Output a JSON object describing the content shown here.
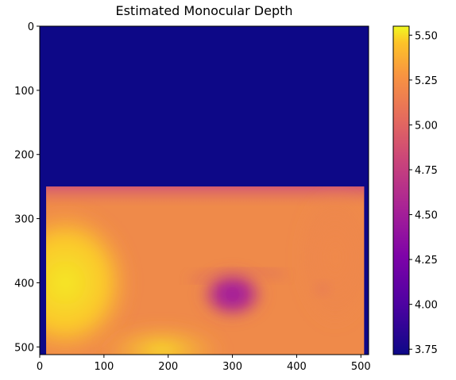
{
  "chart_data": {
    "type": "heatmap",
    "title": "Estimated Monocular Depth",
    "xlabel": "",
    "ylabel": "",
    "x_ticks": [
      0,
      100,
      200,
      300,
      400,
      500
    ],
    "y_ticks": [
      0,
      100,
      200,
      300,
      400,
      500
    ],
    "x_range": [
      0,
      512
    ],
    "y_range": [
      0,
      512
    ],
    "colormap": "plasma",
    "colorbar": {
      "range": [
        3.72,
        5.55
      ],
      "ticks": [
        3.75,
        4.0,
        4.25,
        4.5,
        4.75,
        5.0,
        5.25,
        5.5
      ],
      "tick_labels": [
        "3.75",
        "4.00",
        "4.25",
        "4.50",
        "4.75",
        "5.00",
        "5.25",
        "5.50"
      ]
    },
    "background_value": 3.72,
    "depth_region": {
      "x": [
        10,
        505
      ],
      "y": [
        250,
        512
      ]
    },
    "regions": [
      {
        "name": "lower-left bright area",
        "cx": 40,
        "cy": 400,
        "value": 5.45
      },
      {
        "name": "bottom center bright area",
        "cx": 190,
        "cy": 505,
        "value": 5.4
      },
      {
        "name": "upper band",
        "cx": 250,
        "cy": 262,
        "value": 4.8
      },
      {
        "name": "right side",
        "cx": 460,
        "cy": 360,
        "value": 4.95
      },
      {
        "name": "dark blob",
        "cx": 300,
        "cy": 418,
        "value": 4.15
      },
      {
        "name": "small spot",
        "cx": 440,
        "cy": 410,
        "value": 4.75
      }
    ]
  },
  "colors": {
    "background": "#0d0887",
    "axis": "#000000"
  }
}
